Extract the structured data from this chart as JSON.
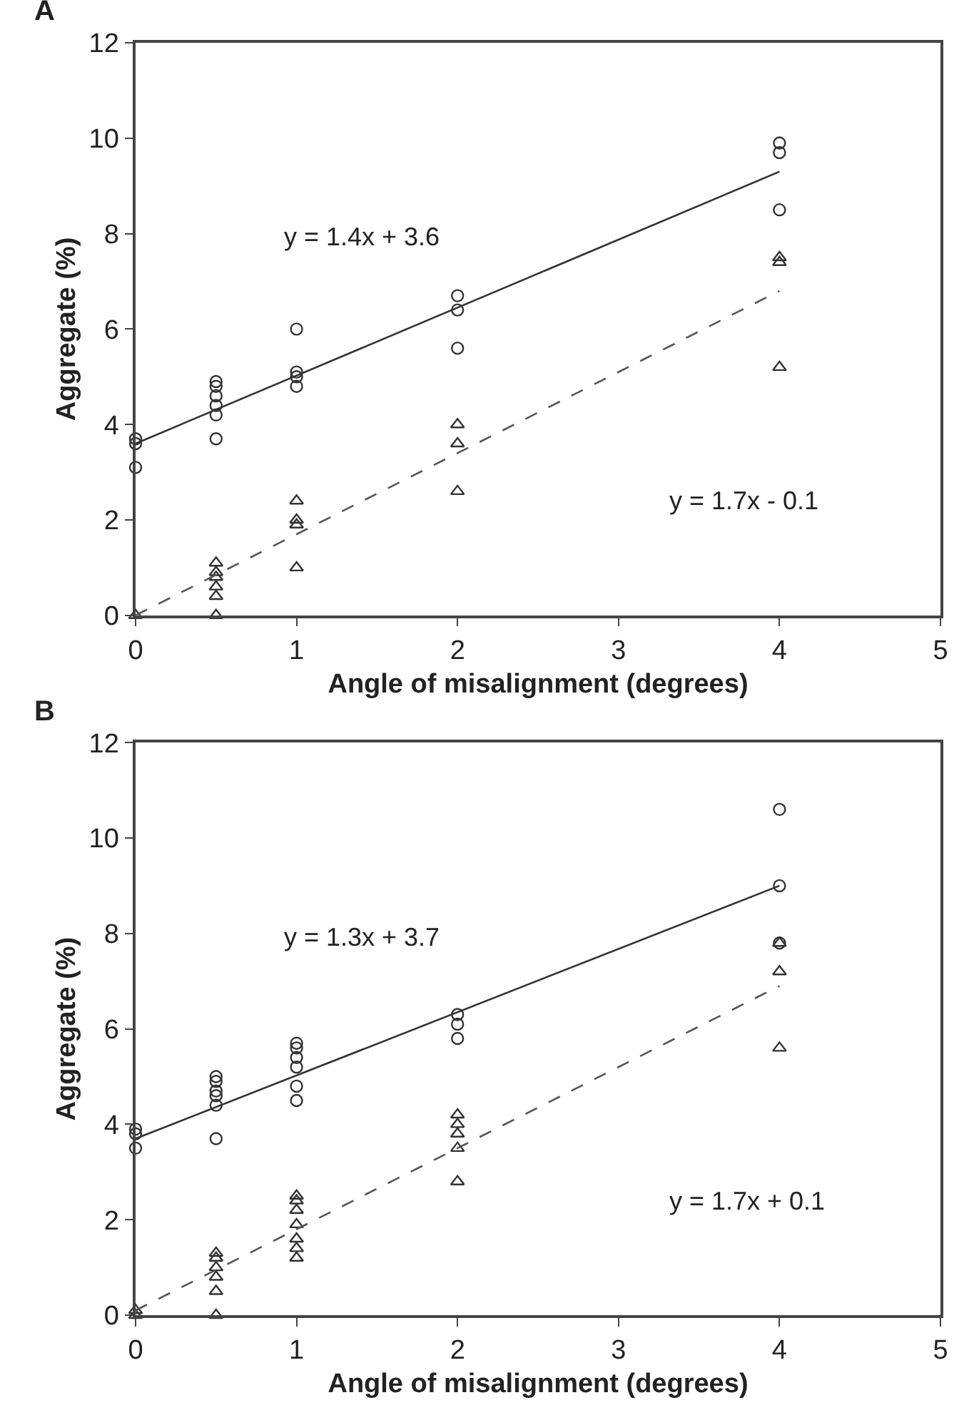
{
  "chart_data": [
    {
      "type": "scatter",
      "title": "A",
      "xlabel": "Angle of misalignment (degrees)",
      "ylabel": "Aggregate (%)",
      "xlim": [
        0,
        5
      ],
      "ylim": [
        0,
        12
      ],
      "xticks": [
        0,
        1,
        2,
        3,
        4,
        5
      ],
      "yticks": [
        0,
        2,
        4,
        6,
        8,
        10,
        12
      ],
      "annotations": [
        "y = 1.4x + 3.6",
        "y = 1.7x - 0.1"
      ],
      "series": [
        {
          "type": "scatter",
          "marker": "circle",
          "color": "#333333",
          "x": [
            0,
            0,
            0,
            0.5,
            0.5,
            0.5,
            0.5,
            0.5,
            0.5,
            1,
            1,
            1,
            1,
            2,
            2,
            2,
            4,
            4,
            4
          ],
          "values": [
            3.7,
            3.6,
            3.1,
            4.9,
            4.8,
            4.6,
            4.4,
            4.2,
            3.7,
            6.0,
            5.1,
            5.0,
            4.8,
            6.7,
            6.4,
            5.6,
            9.9,
            9.7,
            8.5
          ]
        },
        {
          "type": "scatter",
          "marker": "triangle",
          "color": "#333333",
          "x": [
            0,
            0.5,
            0.5,
            0.5,
            0.5,
            0.5,
            0.5,
            1,
            1,
            1,
            1,
            2,
            2,
            2,
            4,
            4,
            4
          ],
          "values": [
            0,
            1.1,
            0.9,
            0.8,
            0.6,
            0.4,
            0,
            2.4,
            2.0,
            1.9,
            1.0,
            4.0,
            3.6,
            2.6,
            7.5,
            7.4,
            5.2
          ]
        },
        {
          "type": "line",
          "marker": "none",
          "line_style": "solid",
          "color": "#333333",
          "x": [
            0,
            4
          ],
          "values": [
            3.6,
            9.3
          ]
        },
        {
          "type": "line",
          "marker": "none",
          "line_style": "dashed",
          "color": "#555555",
          "x": [
            0,
            4
          ],
          "values": [
            0,
            6.8
          ]
        }
      ]
    },
    {
      "type": "scatter",
      "title": "B",
      "xlabel": "Angle of misalignment (degrees)",
      "ylabel": "Aggregate (%)",
      "xlim": [
        0,
        5
      ],
      "ylim": [
        0,
        12
      ],
      "xticks": [
        0,
        1,
        2,
        3,
        4,
        5
      ],
      "yticks": [
        0,
        2,
        4,
        6,
        8,
        10,
        12
      ],
      "annotations": [
        "y = 1.3x + 3.7",
        "y = 1.7x + 0.1"
      ],
      "series": [
        {
          "type": "scatter",
          "marker": "circle",
          "color": "#333333",
          "x": [
            0,
            0,
            0,
            0.5,
            0.5,
            0.5,
            0.5,
            0.5,
            0.5,
            1,
            1,
            1,
            1,
            1,
            1,
            2,
            2,
            2,
            4,
            4,
            4
          ],
          "values": [
            3.9,
            3.8,
            3.5,
            5.0,
            4.9,
            4.7,
            4.6,
            4.4,
            3.7,
            5.7,
            5.6,
            5.4,
            5.2,
            4.8,
            4.5,
            6.3,
            6.1,
            5.8,
            10.6,
            9.0,
            7.8
          ]
        },
        {
          "type": "scatter",
          "marker": "triangle",
          "color": "#333333",
          "x": [
            0,
            0,
            0.5,
            0.5,
            0.5,
            0.5,
            0.5,
            0.5,
            1,
            1,
            1,
            1,
            1,
            1,
            1,
            2,
            2,
            2,
            2,
            2,
            4,
            4,
            4
          ],
          "values": [
            0.1,
            0,
            1.3,
            1.2,
            1.0,
            0.8,
            0.5,
            0,
            2.5,
            2.4,
            2.2,
            1.9,
            1.6,
            1.4,
            1.2,
            4.2,
            4.0,
            3.8,
            3.5,
            2.8,
            7.8,
            7.2,
            5.6
          ]
        },
        {
          "type": "line",
          "marker": "none",
          "line_style": "solid",
          "color": "#333333",
          "x": [
            0,
            4
          ],
          "values": [
            3.7,
            9.0
          ]
        },
        {
          "type": "line",
          "marker": "none",
          "line_style": "dashed",
          "color": "#555555",
          "x": [
            0,
            4
          ],
          "values": [
            0.1,
            6.9
          ]
        }
      ]
    }
  ]
}
